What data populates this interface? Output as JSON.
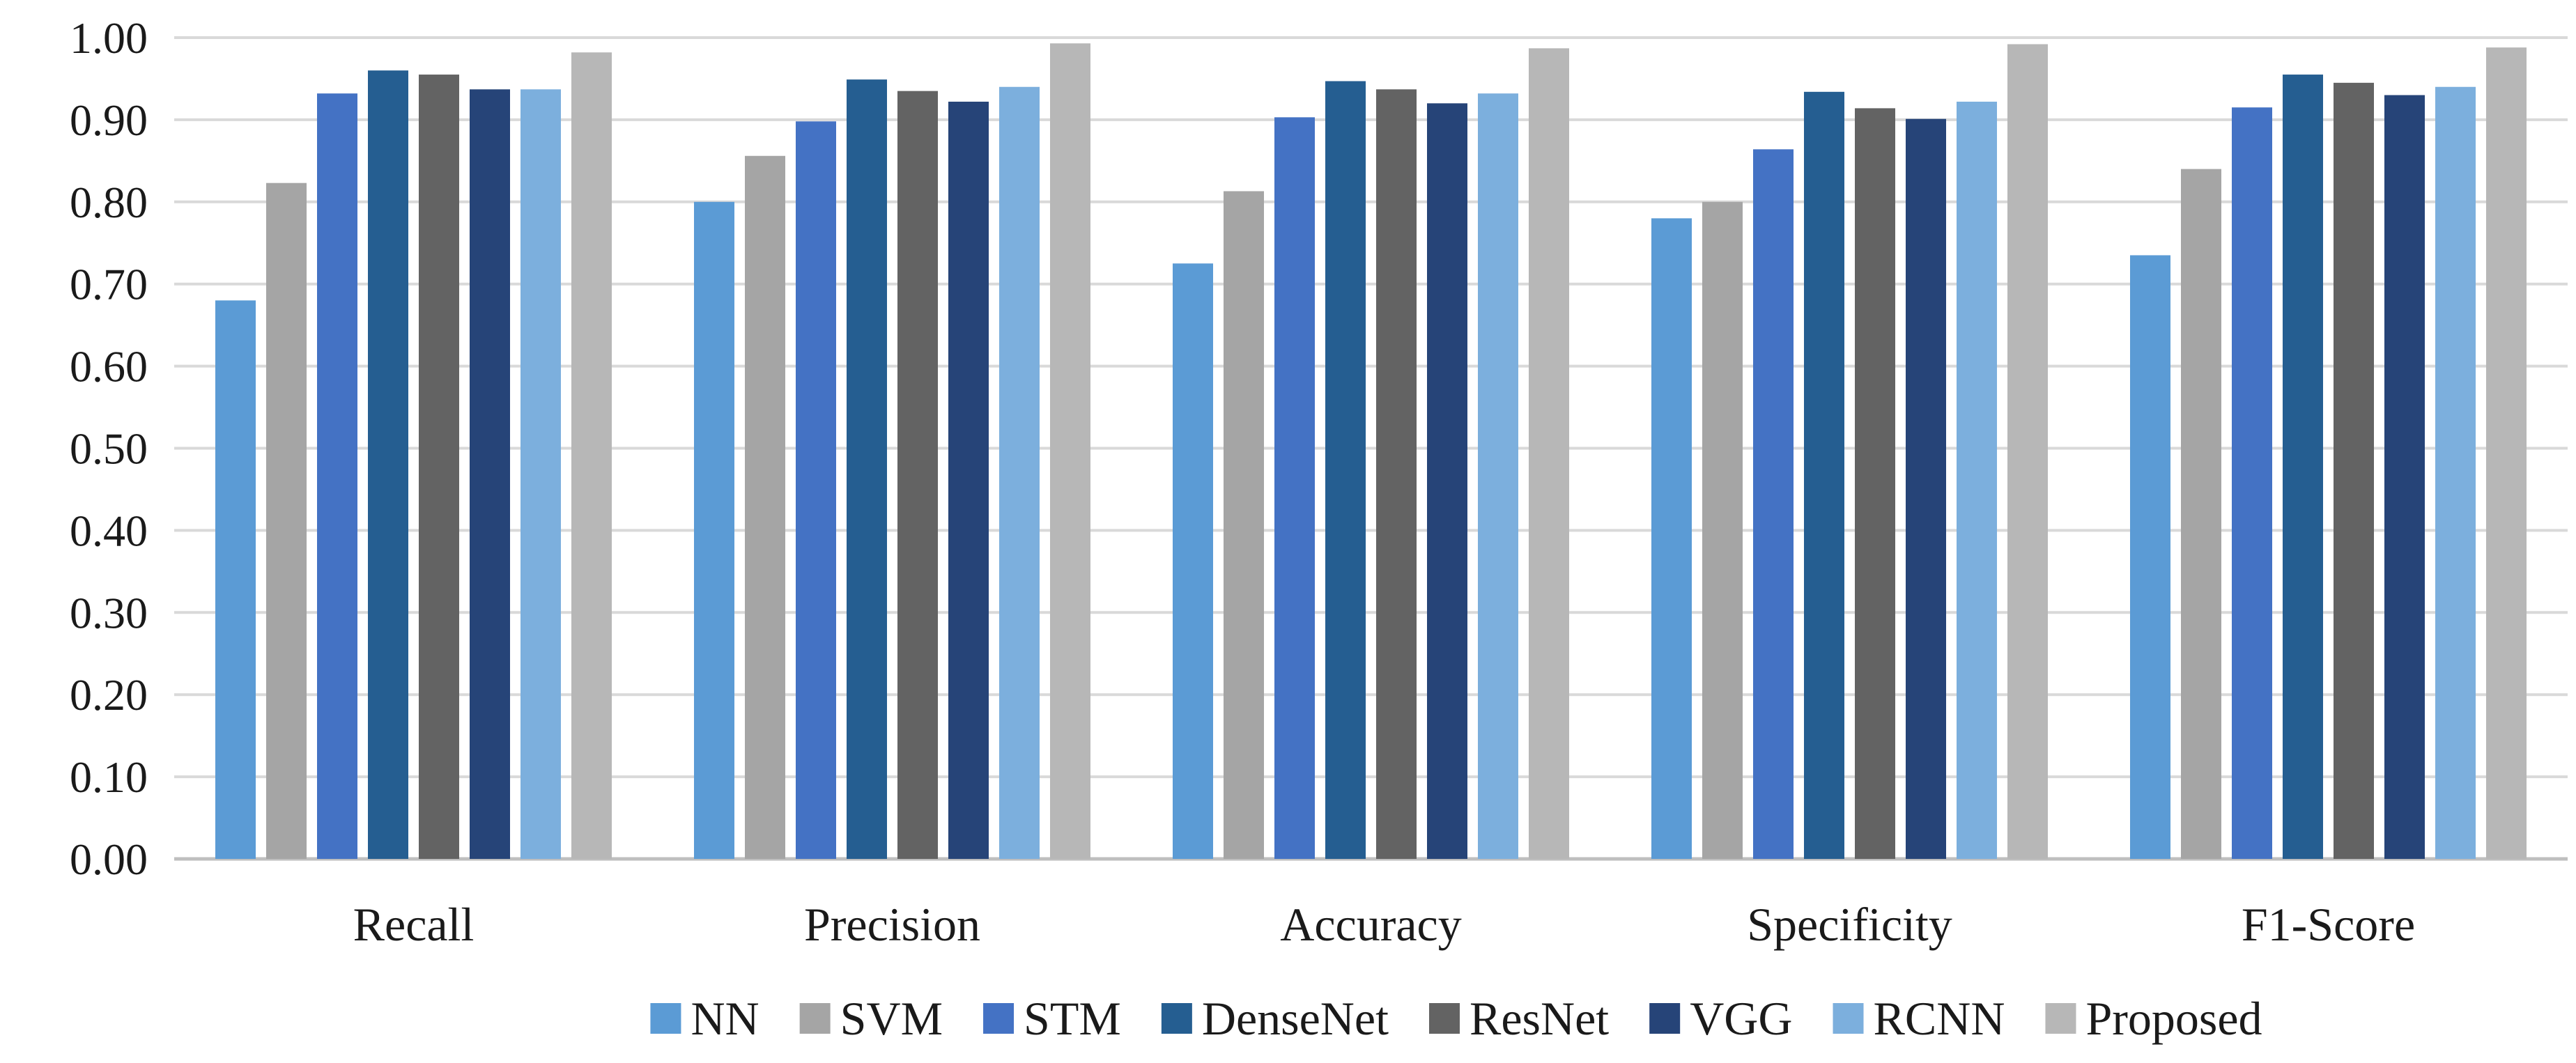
{
  "chart_data": {
    "type": "bar",
    "title": "",
    "xlabel": "",
    "ylabel": "",
    "ylim": [
      0,
      1.0
    ],
    "y_ticks": [
      "0.00",
      "0.10",
      "0.20",
      "0.30",
      "0.40",
      "0.50",
      "0.60",
      "0.70",
      "0.80",
      "0.90",
      "1.00"
    ],
    "grid": true,
    "legend_position": "bottom",
    "categories": [
      "Recall",
      "Precision",
      "Accuracy",
      "Specificity",
      "F1-Score"
    ],
    "series": [
      {
        "name": "NN",
        "color": "#5B9BD5",
        "values": [
          0.68,
          0.8,
          0.725,
          0.78,
          0.735
        ]
      },
      {
        "name": "SVM",
        "color": "#A5A5A5",
        "values": [
          0.823,
          0.856,
          0.813,
          0.8,
          0.84
        ]
      },
      {
        "name": "STM",
        "color": "#4472C4",
        "values": [
          0.932,
          0.898,
          0.903,
          0.864,
          0.915
        ]
      },
      {
        "name": "DenseNet",
        "color": "#255E91",
        "values": [
          0.96,
          0.949,
          0.947,
          0.934,
          0.955
        ]
      },
      {
        "name": "ResNet",
        "color": "#636363",
        "values": [
          0.955,
          0.935,
          0.937,
          0.914,
          0.945
        ]
      },
      {
        "name": "VGG",
        "color": "#264478",
        "values": [
          0.937,
          0.922,
          0.92,
          0.901,
          0.93
        ]
      },
      {
        "name": "RCNN",
        "color": "#7CAFDD",
        "values": [
          0.937,
          0.94,
          0.932,
          0.922,
          0.94
        ]
      },
      {
        "name": "Proposed",
        "color": "#B7B7B7",
        "values": [
          0.982,
          0.993,
          0.987,
          0.992,
          0.988
        ]
      }
    ]
  }
}
